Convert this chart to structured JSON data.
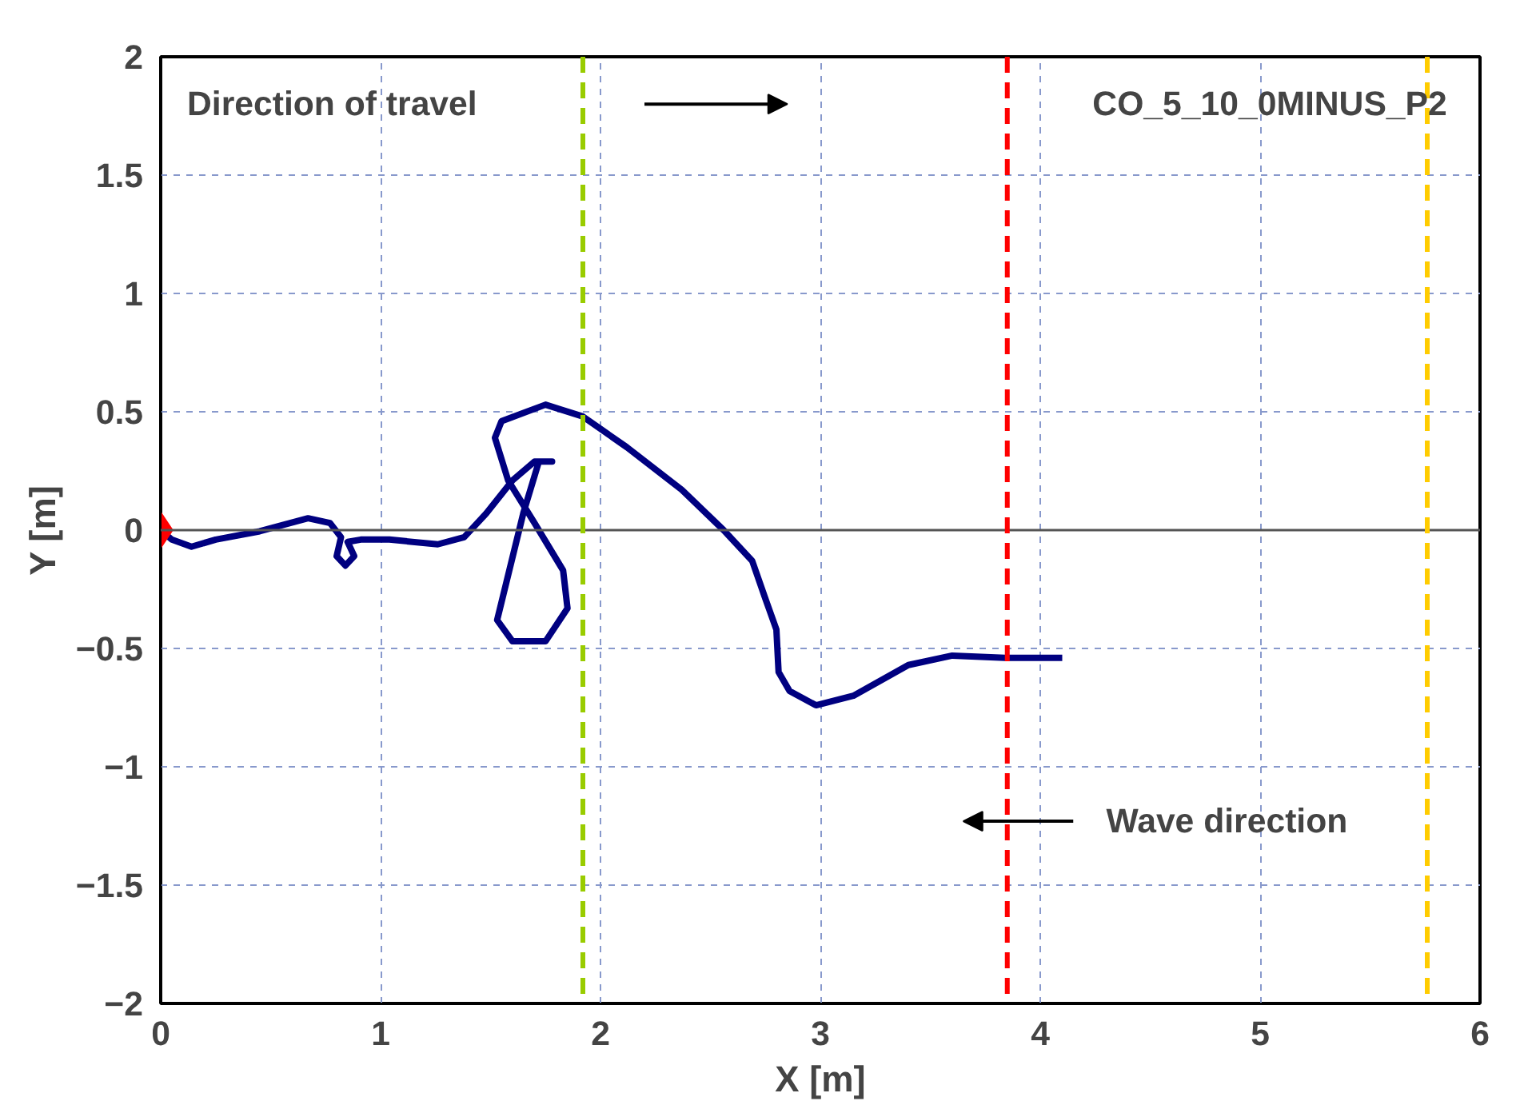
{
  "chart_data": {
    "type": "line",
    "xlabel": "X [m]",
    "ylabel": "Y [m]",
    "xlim": [
      0,
      6
    ],
    "ylim": [
      -2,
      2
    ],
    "xticks": [
      0,
      1,
      2,
      3,
      4,
      5,
      6
    ],
    "yticks": [
      -2,
      -1.5,
      -1,
      -0.5,
      0,
      0.5,
      1,
      1.5,
      2
    ],
    "grid": true,
    "annotations": [
      "Direction of travel",
      "CO_5_10_0MINUS_P2",
      "Wave direction"
    ],
    "ref_lines": [
      {
        "axis": "x",
        "value": 1.92,
        "color": "#99cc00",
        "line_style": "dashed"
      },
      {
        "axis": "x",
        "value": 3.85,
        "color": "#ff0000",
        "line_style": "dashed"
      },
      {
        "axis": "x",
        "value": 5.76,
        "color": "#ffcc00",
        "line_style": "dashed"
      }
    ],
    "series": [
      {
        "color": "#000080",
        "marker": "none",
        "x": [
          0,
          0.05,
          0.14,
          0.25,
          0.45,
          0.67,
          0.77,
          0.82,
          0.8,
          0.84,
          0.88,
          0.85,
          0.91,
          1.04,
          1.26,
          1.38,
          1.48,
          1.6,
          1.7,
          1.78,
          1.72,
          1.65,
          1.53,
          1.6,
          1.75,
          1.85,
          1.83,
          1.7,
          1.58,
          1.52,
          1.55,
          1.75,
          1.92,
          2.12,
          2.37,
          2.56,
          2.69,
          2.75,
          2.8,
          2.81,
          2.86,
          2.98,
          3.15,
          3.4,
          3.6,
          3.84,
          4.1
        ],
        "values": [
          0,
          -0.04,
          -0.07,
          -0.04,
          -0.005,
          0.05,
          0.03,
          -0.03,
          -0.11,
          -0.15,
          -0.11,
          -0.05,
          -0.04,
          -0.04,
          -0.06,
          -0.03,
          0.07,
          0.21,
          0.29,
          0.29,
          0.29,
          0.075,
          -0.38,
          -0.47,
          -0.47,
          -0.33,
          -0.17,
          0.03,
          0.21,
          0.39,
          0.46,
          0.53,
          0.48,
          0.35,
          0.17,
          0,
          -0.13,
          -0.29,
          -0.42,
          -0.6,
          -0.68,
          -0.74,
          -0.7,
          -0.57,
          -0.53,
          -0.54,
          -0.54
        ]
      },
      {
        "type": "scatter",
        "color": "#ff0000",
        "marker": "diamond",
        "x": [
          0
        ],
        "values": [
          0
        ]
      }
    ]
  }
}
